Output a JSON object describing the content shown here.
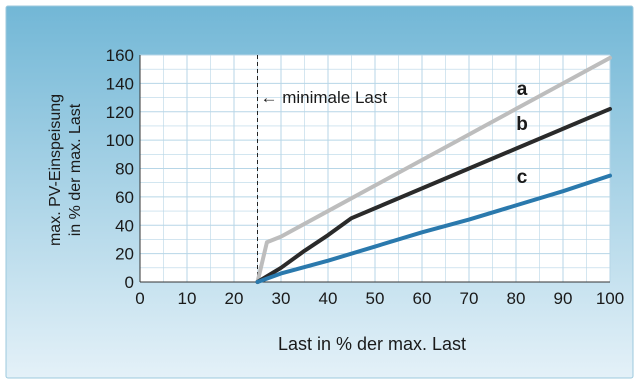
{
  "colors": {
    "panel_top": "#72b7d6",
    "panel_bottom": "#e4f1f8",
    "plot_bg": "#ffffff",
    "grid": "#b7d6e7",
    "series_a": "#bdbdbd",
    "series_b": "#2a2a2a",
    "series_c": "#2a79ad",
    "text": "#1a1a1a"
  },
  "chart_data": {
    "type": "line",
    "title": "",
    "xlabel": "Last in % der max. Last",
    "ylabel_lines": [
      "max. PV-Einspeisung",
      "in % der max. Last"
    ],
    "xlim": [
      0,
      100
    ],
    "ylim": [
      0,
      160
    ],
    "xticks": [
      0,
      10,
      20,
      30,
      40,
      50,
      60,
      70,
      80,
      90,
      100
    ],
    "yticks": [
      0,
      20,
      40,
      60,
      80,
      100,
      120,
      140,
      160
    ],
    "grid": true,
    "annotation": {
      "text": "← minimale Last",
      "x": 25
    },
    "series": [
      {
        "name": "a",
        "color_key": "series_a",
        "x": [
          25,
          27,
          30,
          40,
          50,
          60,
          70,
          80,
          90,
          100
        ],
        "y": [
          0,
          28,
          32,
          50,
          68,
          86,
          104,
          122,
          140,
          158
        ]
      },
      {
        "name": "b",
        "color_key": "series_b",
        "x": [
          25,
          30,
          35,
          40,
          45,
          50,
          60,
          70,
          80,
          90,
          100
        ],
        "y": [
          0,
          10,
          22,
          33,
          45,
          52,
          66,
          80,
          94,
          108,
          122
        ]
      },
      {
        "name": "c",
        "color_key": "series_c",
        "x": [
          25,
          30,
          40,
          50,
          60,
          70,
          80,
          90,
          100
        ],
        "y": [
          0,
          6,
          15,
          25,
          35,
          44,
          54,
          64,
          75
        ]
      }
    ]
  }
}
